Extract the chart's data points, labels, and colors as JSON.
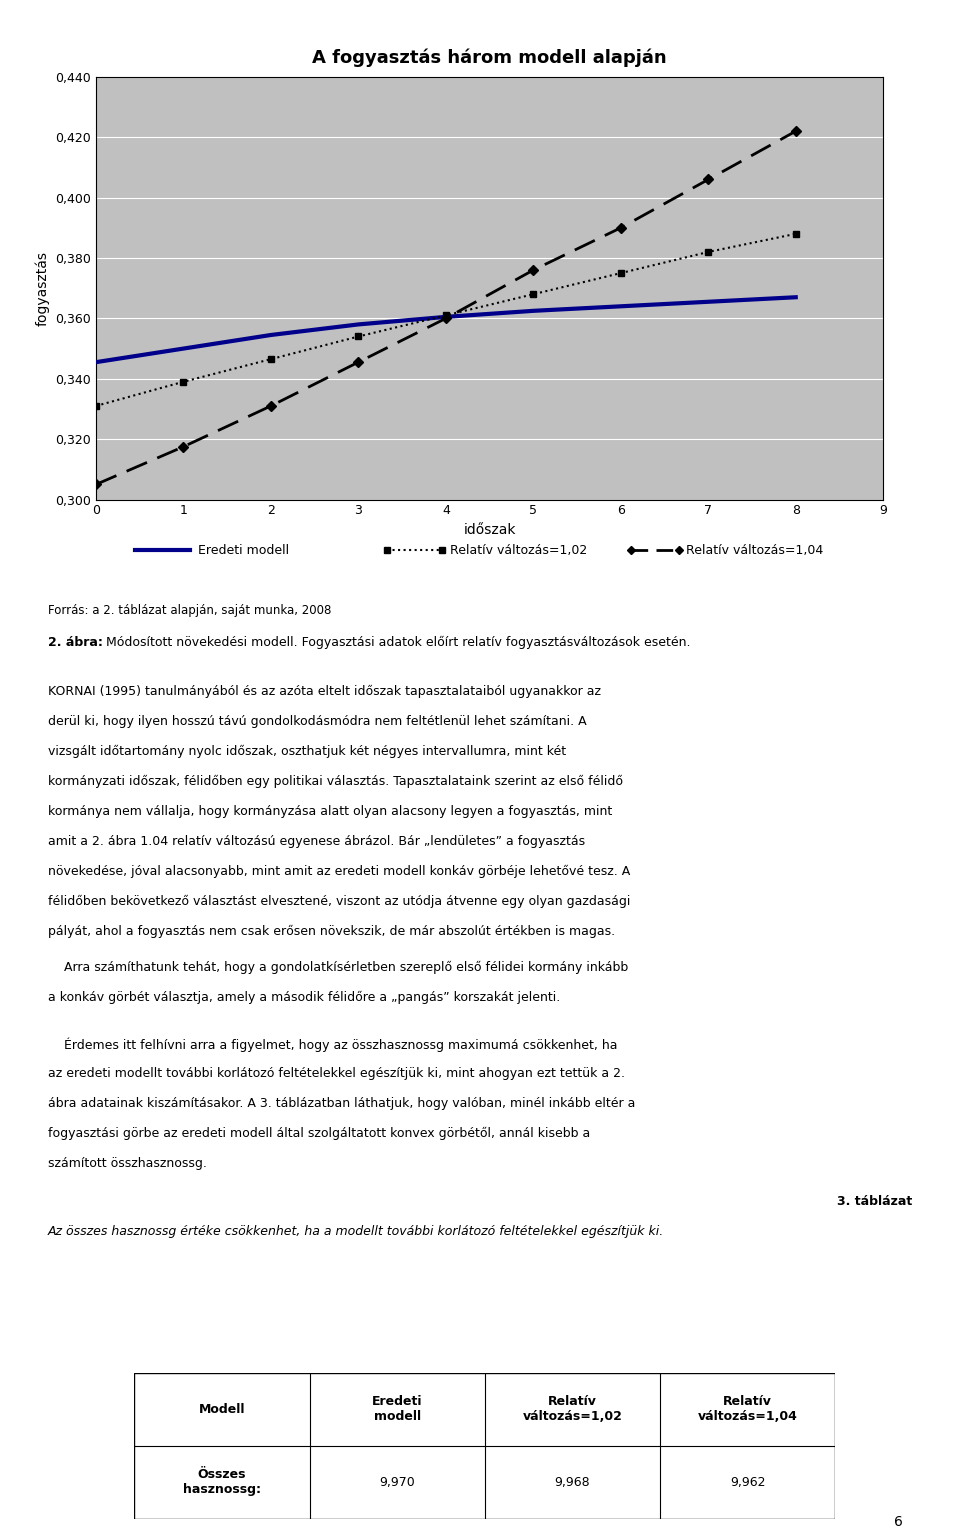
{
  "title": "A fogyasztás három modell alapján",
  "xlabel": "időszak",
  "ylabel": "fogyasztás",
  "xlim": [
    0,
    9
  ],
  "ylim": [
    0.3,
    0.44
  ],
  "yticks": [
    0.3,
    0.32,
    0.34,
    0.36,
    0.38,
    0.4,
    0.42,
    0.44
  ],
  "xticks": [
    0,
    1,
    2,
    3,
    4,
    5,
    6,
    7,
    8,
    9
  ],
  "x": [
    0,
    1,
    2,
    3,
    4,
    5,
    6,
    7,
    8
  ],
  "eredeti_y": [
    0.3455,
    0.35,
    0.3545,
    0.358,
    0.3605,
    0.3625,
    0.364,
    0.3655,
    0.367
  ],
  "rel102_y": [
    0.331,
    0.339,
    0.3465,
    0.354,
    0.361,
    0.368,
    0.375,
    0.382,
    0.388
  ],
  "rel104_y": [
    0.305,
    0.3175,
    0.331,
    0.3455,
    0.36,
    0.376,
    0.39,
    0.406,
    0.422
  ],
  "legend1": "Eredeti modell",
  "legend2": "Relatív változás=1,02",
  "legend3": "Relatív változás=1,04",
  "plot_bg_color": "#C0C0C0",
  "page_bg_color": "#FFFFFF",
  "eredeti_color": "#00008B",
  "source_text": "Forrás: a 2. táblázat alapján, saját munka, 2008",
  "caption_bold": "2. ábra:",
  "caption_text": " Módosított növekedési modell. Fogyasztási adatok előírt relatív fogyasztásváltozások esetén.",
  "body1_l1": "KORNAI (1995) tanulmányából és az azóta eltelt időszak tapasztalataiból ugyanakkor az",
  "body1_l2": "derül ki, hogy ilyen hosszú távú gondolkodásmódra nem feltétlenül lehet számítani. A",
  "body1_l3": "vizsgált időtartomány nyolc időszak, oszthatjuk két négyes intervallumra, mint két",
  "body1_l4": "kormányzati időszak, félidőben egy politikai választás. Tapasztalataink szerint az első félidő",
  "body1_l5": "kormánya nem vállalja, hogy kormányzása alatt olyan alacsony legyen a fogyasztás, mint",
  "body1_l6": "amit a 2. ábra 1.04 relatív változású egyenese ábrázol. Bár „lendületes” a fogyasztás",
  "body1_l7": "növekedése, jóval alacsonyabb, mint amit az eredeti modell konkáv görbéje lehetővé tesz. A",
  "body1_l8": "félidőben bekövetkező választást elvesztené, viszont az utódja átvenne egy olyan gazdasági",
  "body1_l9": "pályát, ahol a fogyasztás nem csak erősen növekszik, de már abszolút értékben is magas.",
  "body2_l1": "    Arra számíthatunk tehát, hogy a gondolatkísérletben szereplő első félidei kormány inkább",
  "body2_l2": "a konkáv görbét választja, amely a második félidőre a „pangás” korszakát jelenti.",
  "body3_l1": "    Érdemes itt felhívni arra a figyelmet, hogy az összhasznossg maximumá csökkenhet, ha",
  "body3_l2": "az eredeti modellt további korlátozó feltételekkel egészítjük ki, mint ahogyan ezt tettük a 2.",
  "body3_l3": "ábra adatainak kiszámításakor. A 3. táblázatban láthatjuk, hogy valóban, minél inkább eltér a",
  "body3_l4": "fogyasztási görbe az eredeti modell által szolgáltatott konvex görbétől, annál kisebb a",
  "body3_l5": "számított összhasznossg.",
  "table_label": "3. táblázat",
  "table_caption": "Az összes hasznossg értéke csökkenhet, ha a modellt további korlátozó feltételekkel egészítjük ki.",
  "th0": "Modell",
  "th1": "Eredeti\nmodell",
  "th2": "Relatív\nváltozás=1,02",
  "th3": "Relatív\nváltozás=1,04",
  "tr_label": "Összes\nhasznossg:",
  "tv1": "9,970",
  "tv2": "9,968",
  "tv3": "9,962",
  "page_number": "6"
}
